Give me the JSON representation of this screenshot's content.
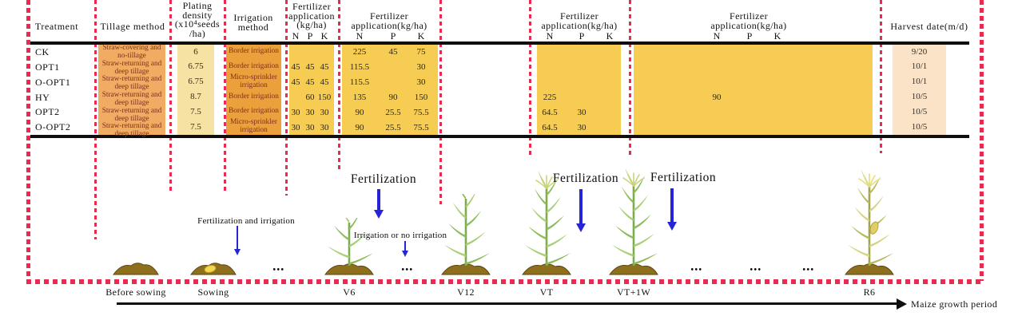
{
  "colors": {
    "frame_red": "#ea2a4e",
    "table_line_black": "#0e0e0e",
    "tillage_bg": "#f1ac63",
    "density_bg": "#f6e2a2",
    "irrigation_bg": "#eca03c",
    "fertilizer_bg": "#f6cd52",
    "harvest_bg": "#fbe3c8",
    "cell_text_maroon": "#7d2f1c",
    "arrow_blue": "#2525d5"
  },
  "table": {
    "headers": {
      "treatment": "Treatment",
      "tillage": "Tillage method",
      "density_lines": [
        "Plating",
        "density",
        "(x10⁴seeds",
        "/ha)"
      ],
      "irrigation_lines": [
        "Irrigation",
        "method"
      ],
      "fert1_lines": [
        "Fertilizer",
        "application",
        "(kg/ha)"
      ],
      "fert_wide_lines": [
        "Fertilizer",
        "application(kg/ha)"
      ],
      "npk": [
        "N",
        "P",
        "K"
      ],
      "harvest": "Harvest date(m/d)"
    },
    "rows": [
      {
        "treatment": "CK",
        "tillage": "Straw-covering and no-tillage",
        "density": "6",
        "irrigation": "Border irrigation",
        "fert1": [
          "",
          "",
          ""
        ],
        "fert2": [
          "225",
          "45",
          "75"
        ],
        "fert3": [
          "",
          "",
          ""
        ],
        "fert4": [
          "",
          "",
          ""
        ],
        "harvest": "9/20"
      },
      {
        "treatment": "OPT1",
        "tillage": "Straw-returning and deep tillage",
        "density": "6.75",
        "irrigation": "Border irrigation",
        "fert1": [
          "45",
          "45",
          "45"
        ],
        "fert2": [
          "115.5",
          "",
          "30"
        ],
        "fert3": [
          "",
          "",
          ""
        ],
        "fert4": [
          "",
          "",
          ""
        ],
        "harvest": "10/1"
      },
      {
        "treatment": "O-OPT1",
        "tillage": "Straw-returning and deep tillage",
        "density": "6.75",
        "irrigation": "Micro-sprinkler irrigation",
        "fert1": [
          "45",
          "45",
          "45"
        ],
        "fert2": [
          "115.5",
          "",
          "30"
        ],
        "fert3": [
          "",
          "",
          ""
        ],
        "fert4": [
          "",
          "",
          ""
        ],
        "harvest": "10/1"
      },
      {
        "treatment": "HY",
        "tillage": "Straw-returning and deep tillage",
        "density": "8.7",
        "irrigation": "Border irrigation",
        "fert1": [
          "",
          "60",
          "150"
        ],
        "fert2": [
          "135",
          "90",
          "150"
        ],
        "fert3": [
          "225",
          "",
          ""
        ],
        "fert4": [
          "90",
          "",
          ""
        ],
        "harvest": "10/5"
      },
      {
        "treatment": "OPT2",
        "tillage": "Straw-returning and deep tillage",
        "density": "7.5",
        "irrigation": "Border irrigation",
        "fert1": [
          "30",
          "30",
          "30"
        ],
        "fert2": [
          "90",
          "25.5",
          "75.5"
        ],
        "fert3": [
          "64.5",
          "30",
          ""
        ],
        "fert4": [
          "",
          "",
          ""
        ],
        "harvest": "10/5"
      },
      {
        "treatment": "O-OPT2",
        "tillage": "Straw-returning and deep tillage",
        "density": "7.5",
        "irrigation": "Micro-sprinkler irrigation",
        "fert1": [
          "30",
          "30",
          "30"
        ],
        "fert2": [
          "90",
          "25.5",
          "75.5"
        ],
        "fert3": [
          "64.5",
          "30",
          ""
        ],
        "fert4": [
          "",
          "",
          ""
        ],
        "harvest": "10/5"
      }
    ]
  },
  "timeline": {
    "stages": [
      {
        "label": "Before sowing"
      },
      {
        "label": "Sowing"
      },
      {
        "label": "V6"
      },
      {
        "label": "V12"
      },
      {
        "label": "VT"
      },
      {
        "label": "VT+1W"
      },
      {
        "label": "R6"
      }
    ],
    "annotations": {
      "sowing": "Fertilization and irrigation",
      "fert": "Fertilization",
      "irrigation_note": "Irrigation or no irrigation"
    },
    "dots": "•••",
    "axis_label": "Maize growth period"
  }
}
